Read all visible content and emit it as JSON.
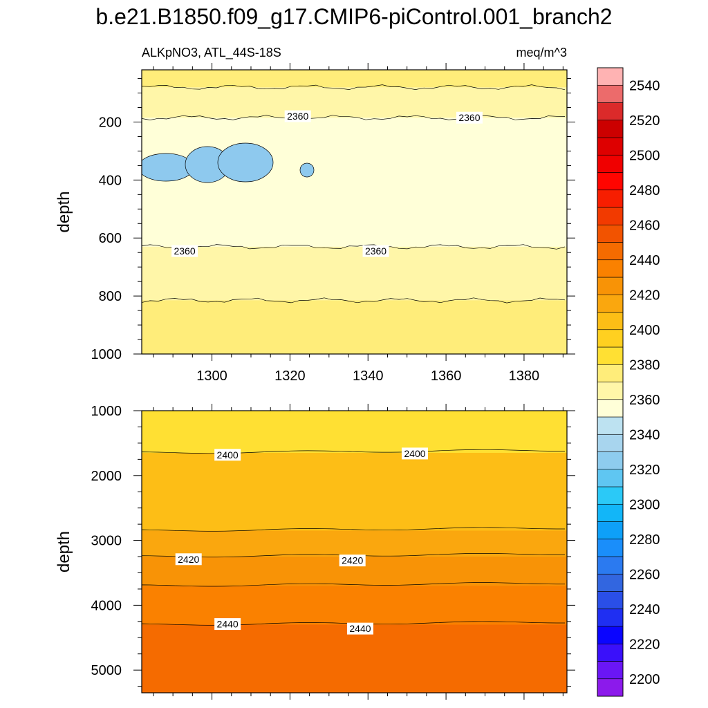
{
  "title": "b.e21.B1850.f09_g17.CMIP6-piControl.001_branch2",
  "subtitle_left": "ALKpNO3, ATL_44S-18S",
  "subtitle_right": "meq/m^3",
  "chart_data": [
    {
      "type": "contour",
      "panel": "upper",
      "ylabel": "depth",
      "xlabel": "",
      "xlim": [
        1282,
        1391
      ],
      "ylim": [
        1000,
        20
      ],
      "x_ticks": [
        1300,
        1320,
        1340,
        1360,
        1380
      ],
      "y_ticks": [
        200,
        400,
        600,
        800,
        1000
      ],
      "depth_bands": [
        {
          "depth_top": 20,
          "value": 2375
        },
        {
          "depth_top": 80,
          "value": 2365
        },
        {
          "depth_top": 185,
          "value": 2355
        },
        {
          "depth_top": 630,
          "value": 2365
        },
        {
          "depth_top": 815,
          "value": 2375
        }
      ],
      "contour_labels": [
        {
          "text": "2360",
          "x": 1322,
          "depth": 180
        },
        {
          "text": "2360",
          "x": 1366,
          "depth": 185
        },
        {
          "text": "2360",
          "x": 1293,
          "depth": 645
        },
        {
          "text": "2360",
          "x": 1342,
          "depth": 645
        }
      ]
    },
    {
      "type": "contour",
      "panel": "lower",
      "ylabel": "depth",
      "xlabel": "",
      "xlim": [
        1282,
        1391
      ],
      "ylim": [
        5350,
        1000
      ],
      "y_ticks": [
        1000,
        2000,
        3000,
        4000,
        5000
      ],
      "depth_bands": [
        {
          "depth_top": 1000,
          "value": 2385
        },
        {
          "depth_top": 1650,
          "value": 2405
        },
        {
          "depth_top": 2850,
          "value": 2415
        },
        {
          "depth_top": 3250,
          "value": 2425
        },
        {
          "depth_top": 3700,
          "value": 2435
        },
        {
          "depth_top": 4300,
          "value": 2445
        }
      ],
      "contour_labels": [
        {
          "text": "2400",
          "x": 1304,
          "depth": 1680
        },
        {
          "text": "2400",
          "x": 1352,
          "depth": 1660
        },
        {
          "text": "2420",
          "x": 1294,
          "depth": 3290
        },
        {
          "text": "2420",
          "x": 1336,
          "depth": 3310
        },
        {
          "text": "2440",
          "x": 1304,
          "depth": 4290
        },
        {
          "text": "2440",
          "x": 1338,
          "depth": 4360
        }
      ]
    }
  ],
  "colorbar": {
    "ticks": [
      "2200",
      "2220",
      "2240",
      "2260",
      "2280",
      "2300",
      "2320",
      "2340",
      "2360",
      "2380",
      "2400",
      "2420",
      "2440",
      "2460",
      "2480",
      "2500",
      "2520",
      "2540"
    ],
    "colors": [
      "#8C1AEB",
      "#6A16F5",
      "#3A10FA",
      "#0A05FF",
      "#1F2FF2",
      "#2A4FE8",
      "#3266E0",
      "#2B7AF0",
      "#1A8EFA",
      "#0EA0F8",
      "#12B6F8",
      "#2BC9F7",
      "#5FC6F2",
      "#8ECCEE",
      "#A8D5EE",
      "#BDE2F1",
      "#FFFFD8",
      "#FFF6A8",
      "#FFED7A",
      "#FFE033",
      "#FFD020",
      "#FDBE16",
      "#FAA70E",
      "#F89306",
      "#FA8100",
      "#F56B00",
      "#F25300",
      "#F23A00",
      "#F71E00",
      "#FF0500",
      "#F00000",
      "#DE0000",
      "#CC0000",
      "#DB2A2A",
      "#EC6B6B",
      "#FFB3B3"
    ],
    "colors_from_value": 2190,
    "step": 10
  }
}
